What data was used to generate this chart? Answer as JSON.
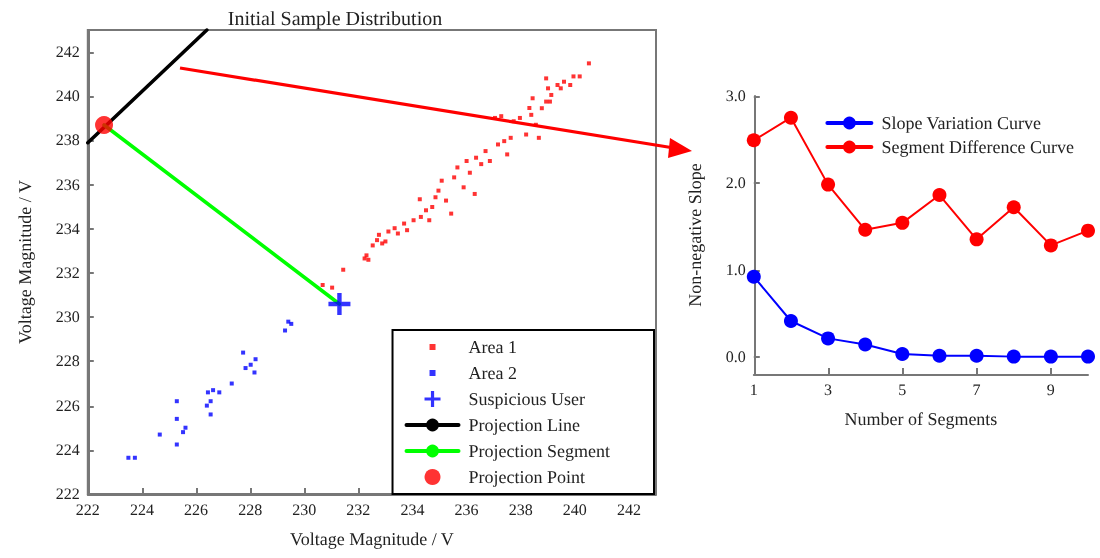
{
  "chart_data": [
    {
      "type": "scatter",
      "title": "Initial Sample Distribution",
      "xlabel": "Voltage Magnitude / V",
      "ylabel": "Voltage Magnitude / V",
      "xlim": [
        222,
        243
      ],
      "ylim": [
        222,
        243
      ],
      "xticks": [
        222,
        224,
        226,
        228,
        230,
        232,
        234,
        236,
        238,
        240,
        242
      ],
      "yticks": [
        222,
        224,
        226,
        228,
        230,
        232,
        234,
        236,
        238,
        240,
        242
      ],
      "grid": false,
      "legend": "bottom right",
      "series": [
        {
          "name": "Area 1",
          "type": "scatter",
          "marker": "square",
          "color": "#ff0000",
          "x": [
            230.68,
            231.03,
            231.44,
            232.23,
            232.3,
            232.37,
            232.53,
            232.69,
            232.76,
            232.88,
            233.0,
            233.11,
            233.34,
            233.46,
            233.69,
            233.8,
            234.04,
            234.27,
            234.31,
            234.5,
            234.62,
            234.73,
            234.85,
            234.96,
            235.08,
            235.24,
            235.43,
            235.54,
            235.66,
            235.89,
            236.0,
            236.12,
            236.3,
            236.35,
            236.54,
            236.7,
            236.86,
            237.05,
            237.16,
            237.28,
            237.39,
            237.5,
            237.63,
            237.74,
            237.97,
            238.2,
            238.32,
            238.39,
            238.44,
            238.56,
            238.67,
            238.78,
            238.94,
            238.94,
            239.01,
            239.08,
            239.13,
            239.36,
            239.48,
            239.6,
            239.83,
            239.95,
            240.18,
            240.52
          ],
          "values": [
            231.46,
            231.34,
            232.15,
            232.66,
            232.8,
            232.6,
            233.25,
            233.49,
            233.73,
            233.34,
            233.43,
            233.88,
            234.03,
            233.79,
            234.24,
            233.94,
            234.39,
            235.34,
            234.54,
            234.84,
            234.39,
            234.99,
            235.43,
            235.73,
            236.18,
            235.28,
            234.69,
            236.33,
            236.78,
            235.88,
            237.07,
            236.54,
            235.58,
            237.22,
            236.93,
            237.52,
            237.07,
            239.02,
            237.82,
            239.1,
            237.97,
            237.37,
            238.12,
            238.87,
            239.02,
            238.27,
            239.47,
            239.16,
            239.91,
            238.71,
            238.12,
            239.46,
            240.81,
            239.76,
            240.36,
            239.76,
            240.06,
            240.51,
            240.36,
            240.66,
            240.51,
            240.9,
            240.9,
            241.49
          ]
        },
        {
          "name": "Area 2",
          "type": "scatter",
          "marker": "square",
          "color": "#0000ff",
          "x": [
            223.5,
            223.74,
            224.66,
            225.29,
            225.29,
            225.29,
            225.52,
            225.61,
            226.4,
            226.44,
            226.54,
            226.54,
            226.63,
            226.86,
            227.32,
            227.74,
            227.83,
            228.02,
            228.16,
            228.2,
            229.29,
            229.41,
            229.52
          ],
          "values": [
            223.64,
            223.64,
            224.69,
            225.4,
            226.2,
            224.24,
            224.8,
            225.0,
            226.0,
            226.6,
            226.2,
            225.6,
            226.7,
            226.6,
            227.0,
            228.4,
            227.7,
            227.85,
            227.5,
            228.1,
            229.4,
            229.8,
            229.7
          ]
        },
        {
          "name": "Suspicious User",
          "type": "scatter",
          "marker": "cross",
          "color": "#0000ff",
          "x": [
            231.3
          ],
          "values": [
            230.6
          ]
        },
        {
          "name": "Projection Line",
          "type": "line",
          "marker": "none",
          "color": "#000000",
          "x": [
            222,
            226.4
          ],
          "values": [
            237.9,
            243
          ]
        },
        {
          "name": "Projection Segment",
          "type": "line",
          "marker": "none",
          "color": "#00ff00",
          "x": [
            222.6,
            231.3
          ],
          "values": [
            238.7,
            230.6
          ]
        },
        {
          "name": "Projection Point",
          "type": "scatter",
          "marker": "circle",
          "color": "#ff0000",
          "x": [
            222.6
          ],
          "values": [
            238.7
          ]
        }
      ]
    },
    {
      "type": "line",
      "xlabel": "Number of Segments",
      "ylabel": "Non-negative Slope",
      "x": [
        1,
        2,
        3,
        4,
        5,
        6,
        7,
        8,
        9,
        10
      ],
      "xlim": [
        1,
        10
      ],
      "xticks": [
        1,
        3,
        5,
        7,
        9
      ],
      "ylim": [
        -0.2,
        3
      ],
      "yticks": [
        {
          "value": 0,
          "label": "0.0"
        },
        {
          "value": 1,
          "label": "1.0"
        },
        {
          "value": 2,
          "label": "2.0"
        },
        {
          "value": 3,
          "label": "3.0"
        }
      ],
      "grid": false,
      "legend": "top right",
      "marker": "circle",
      "line_style": "solid",
      "series": [
        {
          "name": "Slope Variation Curve",
          "color": "#0000ff",
          "values": [
            0.92,
            0.41,
            0.21,
            0.14,
            0.03,
            0.01,
            0.01,
            0,
            0,
            0
          ]
        },
        {
          "name": "Segment Difference Curve",
          "color": "#ff0000",
          "values": [
            2.49,
            2.75,
            1.98,
            1.46,
            1.54,
            1.86,
            1.35,
            1.72,
            1.28,
            1.45
          ]
        }
      ]
    }
  ]
}
